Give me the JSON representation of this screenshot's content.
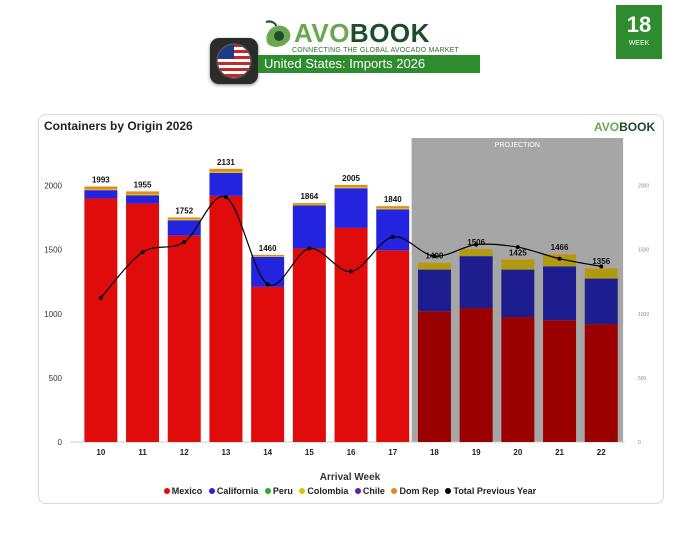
{
  "header": {
    "brand_name_part1": "AVO",
    "brand_name_part2": "BOOK",
    "tagline": "CONNECTING THE GLOBAL AVOCADO MARKET",
    "subtitle_country": "United States",
    "subtitle_rest": ": Imports 2026",
    "week_number": "18",
    "week_label": "WEEK"
  },
  "colors": {
    "mexico": "#e00b0b",
    "mexico_projection": "#9a0000",
    "california": "#2424e0",
    "california_projection": "#1d1d8f",
    "peru": "#2eaa2e",
    "colombia": "#e0c000",
    "colombia_projection": "#b09a10",
    "chile": "#6a1aa0",
    "dom_rep": "#e08a1a",
    "previous_year": "#000000",
    "projection_band": "#a6a6a6",
    "brand_green": "#2e8b2e"
  },
  "chart_data": {
    "type": "bar",
    "stacked": true,
    "title": "Containers by Origin 2026",
    "xlabel": "Arrival Week",
    "ylabel": "",
    "ylim": [
      0,
      2200
    ],
    "y_ticks": [
      0,
      500,
      1000,
      1500,
      2000
    ],
    "y2_ticks": [
      "0",
      "500",
      "1000",
      "1500",
      "2000"
    ],
    "grid": false,
    "legend_position": "bottom",
    "projection_label": "PROJECTION",
    "projection_weeks": [
      "18",
      "19",
      "20",
      "21",
      "22"
    ],
    "categories": [
      "10",
      "11",
      "12",
      "13",
      "14",
      "15",
      "16",
      "17",
      "18",
      "19",
      "20",
      "21",
      "22"
    ],
    "totals": [
      1993,
      1955,
      1752,
      2131,
      1460,
      1864,
      2005,
      1840,
      1400,
      1506,
      1425,
      1466,
      1356
    ],
    "series": [
      {
        "name": "Mexico",
        "values": [
          1900,
          1860,
          1610,
          1920,
          1210,
          1510,
          1670,
          1495,
          1020,
          1045,
          975,
          950,
          920
        ]
      },
      {
        "name": "California",
        "values": [
          65,
          65,
          120,
          180,
          235,
          335,
          310,
          320,
          325,
          405,
          370,
          420,
          355
        ]
      },
      {
        "name": "Peru",
        "values": [
          0,
          0,
          0,
          0,
          0,
          0,
          0,
          0,
          0,
          0,
          0,
          0,
          0
        ]
      },
      {
        "name": "Colombia",
        "values": [
          8,
          10,
          10,
          10,
          5,
          8,
          8,
          10,
          50,
          51,
          75,
          90,
          76
        ]
      },
      {
        "name": "Chile",
        "values": [
          0,
          0,
          0,
          0,
          0,
          0,
          0,
          0,
          0,
          0,
          0,
          0,
          0
        ]
      },
      {
        "name": "Dom Rep",
        "values": [
          20,
          20,
          12,
          21,
          10,
          11,
          17,
          15,
          5,
          5,
          5,
          6,
          5
        ]
      }
    ],
    "line_series": {
      "name": "Total Previous Year",
      "values": [
        1125,
        1480,
        1560,
        1910,
        1230,
        1510,
        1330,
        1600,
        1450,
        1540,
        1520,
        1430,
        1370
      ]
    }
  },
  "legend": {
    "mexico": "Mexico",
    "california": "California",
    "peru": "Peru",
    "colombia": "Colombia",
    "chile": "Chile",
    "dom_rep": "Dom Rep",
    "previous_year": "Total Previous Year"
  }
}
